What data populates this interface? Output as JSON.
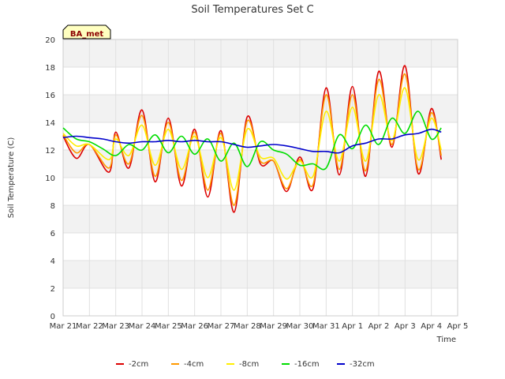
{
  "chart_data": {
    "type": "line",
    "title": "Soil Temperatures Set C",
    "xlabel": "Time",
    "ylabel": "Soil Temperature (C)",
    "ylim": [
      0,
      20
    ],
    "y_ticks": [
      0,
      2,
      4,
      6,
      8,
      10,
      12,
      14,
      16,
      18,
      20
    ],
    "xlim_days": [
      0,
      15
    ],
    "x_tick_labels": [
      "Mar 21",
      "Mar 22",
      "Mar 23",
      "Mar 24",
      "Mar 25",
      "Mar 26",
      "Mar 27",
      "Mar 28",
      "Mar 29",
      "Mar 30",
      "Mar 31",
      "Apr 1",
      "Apr 2",
      "Apr 3",
      "Apr 4",
      "Apr 5"
    ],
    "grid": true,
    "legend_position": "bottom-center",
    "badge_label": "BA_met",
    "series": [
      {
        "name": "-2cm",
        "color": "#dd0000",
        "x": [
          "Mar 21",
          "Mar 21 12:00",
          "Mar 22",
          "Mar 22 18:00",
          "Mar 23",
          "Mar 23 12:00",
          "Mar 24",
          "Mar 24 12:00",
          "Mar 25",
          "Mar 25 12:00",
          "Mar 26",
          "Mar 26 12:00",
          "Mar 27",
          "Mar 27 12:00",
          "Mar 28",
          "Mar 28 12:00",
          "Mar 29",
          "Mar 29 12:00",
          "Mar 30",
          "Mar 30 12:00",
          "Mar 31",
          "Mar 31 12:00",
          "Apr 1",
          "Apr 1 12:00",
          "Apr 2",
          "Apr 2 12:00",
          "Apr 3",
          "Apr 3 12:00",
          "Apr 4",
          "Apr 4 09:00"
        ],
        "y": [
          13.0,
          11.4,
          12.4,
          10.4,
          13.3,
          10.7,
          14.9,
          9.7,
          14.3,
          9.4,
          13.5,
          8.6,
          13.4,
          7.5,
          14.4,
          11.0,
          11.2,
          9.0,
          11.5,
          9.2,
          16.5,
          10.2,
          16.6,
          10.1,
          17.7,
          12.2,
          18.1,
          10.3,
          15.0,
          11.3
        ]
      },
      {
        "name": "-4cm",
        "color": "#ff9900",
        "x": [
          "Mar 21",
          "Mar 21 12:00",
          "Mar 22",
          "Mar 22 18:00",
          "Mar 23",
          "Mar 23 12:00",
          "Mar 24",
          "Mar 24 12:00",
          "Mar 25",
          "Mar 25 12:00",
          "Mar 26",
          "Mar 26 12:00",
          "Mar 27",
          "Mar 27 12:00",
          "Mar 28",
          "Mar 28 12:00",
          "Mar 29",
          "Mar 29 12:00",
          "Mar 30",
          "Mar 30 12:00",
          "Mar 31",
          "Mar 31 12:00",
          "Apr 1",
          "Apr 1 12:00",
          "Apr 2",
          "Apr 2 12:00",
          "Apr 3",
          "Apr 3 12:00",
          "Apr 4",
          "Apr 4 09:00"
        ],
        "y": [
          13.1,
          11.8,
          12.4,
          10.7,
          13.1,
          11.0,
          14.5,
          10.1,
          14.0,
          9.8,
          13.3,
          9.1,
          13.2,
          8.0,
          14.1,
          11.2,
          11.2,
          9.2,
          11.3,
          9.5,
          16.0,
          10.6,
          16.0,
          10.5,
          17.1,
          12.4,
          17.5,
          10.6,
          14.7,
          11.6
        ]
      },
      {
        "name": "-8cm",
        "color": "#ffee00",
        "x": [
          "Mar 21",
          "Mar 21 12:00",
          "Mar 22",
          "Mar 22 18:00",
          "Mar 23",
          "Mar 23 12:00",
          "Mar 24",
          "Mar 24 12:00",
          "Mar 25",
          "Mar 25 12:00",
          "Mar 26",
          "Mar 26 12:00",
          "Mar 27",
          "Mar 27 12:00",
          "Mar 28",
          "Mar 28 12:00",
          "Mar 29",
          "Mar 29 12:00",
          "Mar 30",
          "Mar 30 12:00",
          "Mar 31",
          "Mar 31 12:00",
          "Apr 1",
          "Apr 1 12:00",
          "Apr 2",
          "Apr 2 12:00",
          "Apr 3",
          "Apr 3 12:00",
          "Apr 4",
          "Apr 4 09:00"
        ],
        "y": [
          13.2,
          12.3,
          12.4,
          11.3,
          12.8,
          11.6,
          13.8,
          10.9,
          13.5,
          10.6,
          13.0,
          10.0,
          12.9,
          9.1,
          13.5,
          11.5,
          11.4,
          9.9,
          11.2,
          10.1,
          14.8,
          11.2,
          15.1,
          11.2,
          16.0,
          12.7,
          16.5,
          11.3,
          14.3,
          12.0
        ]
      },
      {
        "name": "-16cm",
        "color": "#00dd00",
        "x": [
          "Mar 21",
          "Mar 21 12:00",
          "Mar 22",
          "Mar 22 12:00",
          "Mar 23",
          "Mar 23 12:00",
          "Mar 24",
          "Mar 24 12:00",
          "Mar 25",
          "Mar 25 12:00",
          "Mar 26",
          "Mar 26 12:00",
          "Mar 27",
          "Mar 27 12:00",
          "Mar 28",
          "Mar 28 12:00",
          "Mar 29",
          "Mar 29 12:00",
          "Mar 30",
          "Mar 30 12:00",
          "Mar 31",
          "Mar 31 12:00",
          "Apr 1",
          "Apr 1 12:00",
          "Apr 2",
          "Apr 2 12:00",
          "Apr 3",
          "Apr 3 12:00",
          "Apr 4",
          "Apr 4 09:00"
        ],
        "y": [
          13.6,
          12.8,
          12.6,
          12.1,
          11.6,
          12.4,
          12.0,
          13.1,
          11.8,
          13.0,
          11.7,
          12.8,
          11.2,
          12.5,
          10.8,
          12.6,
          12.0,
          11.7,
          10.9,
          11.0,
          10.7,
          13.1,
          12.1,
          13.8,
          12.4,
          14.3,
          13.2,
          14.8,
          12.8,
          13.6
        ]
      },
      {
        "name": "-32cm",
        "color": "#0000cc",
        "x": [
          "Mar 21",
          "Mar 21 12:00",
          "Mar 22",
          "Mar 22 12:00",
          "Mar 23",
          "Mar 23 12:00",
          "Mar 24",
          "Mar 24 12:00",
          "Mar 25",
          "Mar 25 12:00",
          "Mar 26",
          "Mar 26 12:00",
          "Mar 27",
          "Mar 27 12:00",
          "Mar 28",
          "Mar 28 12:00",
          "Mar 29",
          "Mar 29 12:00",
          "Mar 30",
          "Mar 30 12:00",
          "Mar 31",
          "Mar 31 12:00",
          "Apr 1",
          "Apr 1 12:00",
          "Apr 2",
          "Apr 2 12:00",
          "Apr 3",
          "Apr 3 12:00",
          "Apr 4",
          "Apr 4 09:00"
        ],
        "y": [
          12.9,
          13.0,
          12.9,
          12.8,
          12.6,
          12.5,
          12.6,
          12.6,
          12.7,
          12.6,
          12.7,
          12.6,
          12.6,
          12.4,
          12.2,
          12.3,
          12.4,
          12.3,
          12.1,
          11.9,
          11.9,
          11.8,
          12.3,
          12.5,
          12.8,
          12.8,
          13.1,
          13.2,
          13.5,
          13.3
        ]
      }
    ]
  }
}
